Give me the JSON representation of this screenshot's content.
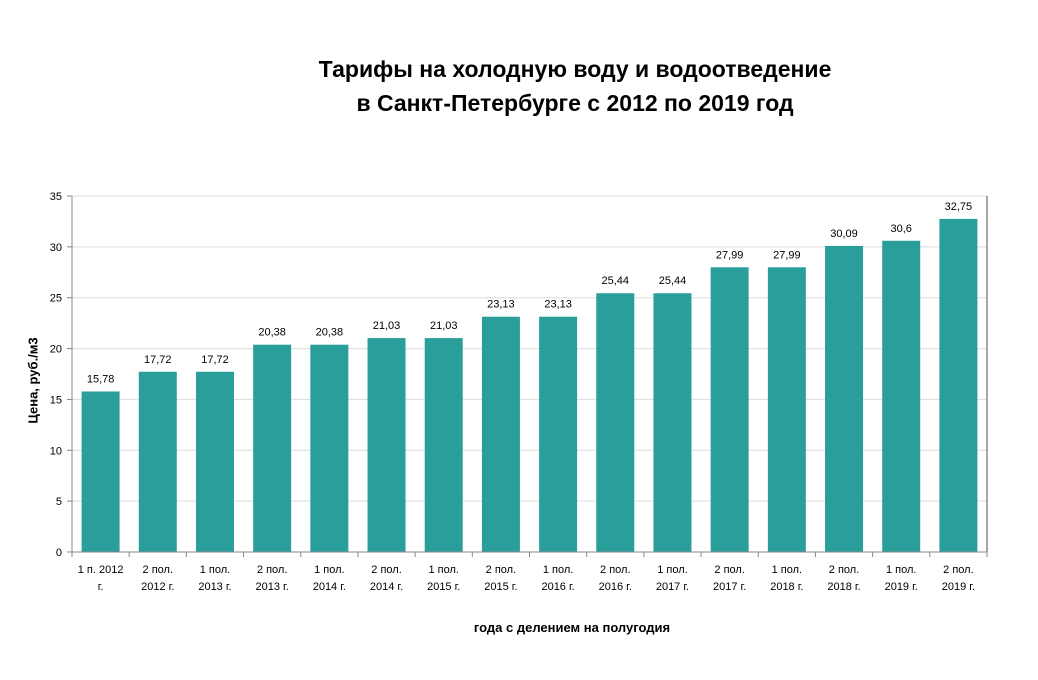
{
  "chart_data": {
    "type": "bar",
    "title_lines": [
      "Тарифы на холодную воду и водоотведение",
      "в Санкт-Петербурге с 2012 по 2019 год"
    ],
    "xlabel": "года с делением на полугодия",
    "ylabel": "Цена, руб./м3",
    "ylim": [
      0,
      35
    ],
    "yticks": [
      0,
      5,
      10,
      15,
      20,
      25,
      30,
      35
    ],
    "grid": true,
    "color": "#2a9e9b",
    "categories": [
      [
        "1 п. 2012",
        "г."
      ],
      [
        "2 пол.",
        "2012 г."
      ],
      [
        "1 пол.",
        "2013 г."
      ],
      [
        "2 пол.",
        "2013 г."
      ],
      [
        "1 пол.",
        "2014 г."
      ],
      [
        "2 пол.",
        "2014 г."
      ],
      [
        "1 пол.",
        "2015 г."
      ],
      [
        "2 пол.",
        "2015 г."
      ],
      [
        "1 пол.",
        "2016 г."
      ],
      [
        "2 пол.",
        "2016 г."
      ],
      [
        "1 пол.",
        "2017 г."
      ],
      [
        "2 пол.",
        "2017 г."
      ],
      [
        "1 пол.",
        "2018 г."
      ],
      [
        "2 пол.",
        "2018 г."
      ],
      [
        "1 пол.",
        "2019 г."
      ],
      [
        "2 пол.",
        "2019 г."
      ]
    ],
    "values": [
      15.78,
      17.72,
      17.72,
      20.38,
      20.38,
      21.03,
      21.03,
      23.13,
      23.13,
      25.44,
      25.44,
      27.99,
      27.99,
      30.09,
      30.6,
      32.75
    ],
    "data_labels": [
      "15,78",
      "17,72",
      "17,72",
      "20,38",
      "20,38",
      "21,03",
      "21,03",
      "23,13",
      "23,13",
      "25,44",
      "25,44",
      "27,99",
      "27,99",
      "30,09",
      "30,6",
      "32,75"
    ]
  }
}
